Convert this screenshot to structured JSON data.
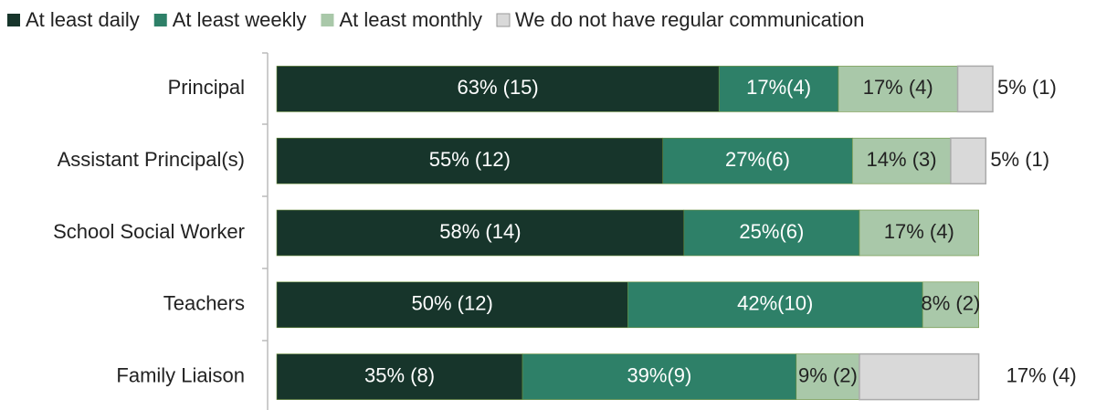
{
  "chart_data": {
    "type": "stacked-bar-horizontal",
    "categories": [
      "Principal",
      "Assistant Principal(s)",
      "School Social Worker",
      "Teachers",
      "Family Liaison"
    ],
    "series": [
      {
        "name": "At least daily",
        "color": "#17352b",
        "values": [
          63,
          55,
          58,
          50,
          35
        ],
        "value_labels": [
          "63% (15)",
          "55% (12)",
          "58% (14)",
          "50% (12)",
          "35% (8)"
        ]
      },
      {
        "name": "At least weekly",
        "color": "#2e8068",
        "values": [
          17,
          27,
          25,
          42,
          39
        ],
        "value_labels": [
          "17%(4)",
          "27%(6)",
          "25%(6)",
          "42%(10)",
          "39%(9)"
        ]
      },
      {
        "name": "At least monthly",
        "color": "#a9c8a9",
        "values": [
          17,
          14,
          17,
          8,
          9
        ],
        "value_labels": [
          "17% (4)",
          "14% (3)",
          "17% (4)",
          "8% (2)",
          "9% (2)"
        ]
      },
      {
        "name": "We do not have regular communication",
        "color": "#d9d9d9",
        "values": [
          5,
          5,
          null,
          null,
          17
        ],
        "value_labels": [
          "5% (1)",
          "5% (1)",
          null,
          null,
          "17% (4)"
        ]
      }
    ],
    "xlim": [
      0,
      102
    ],
    "legend": "top"
  }
}
